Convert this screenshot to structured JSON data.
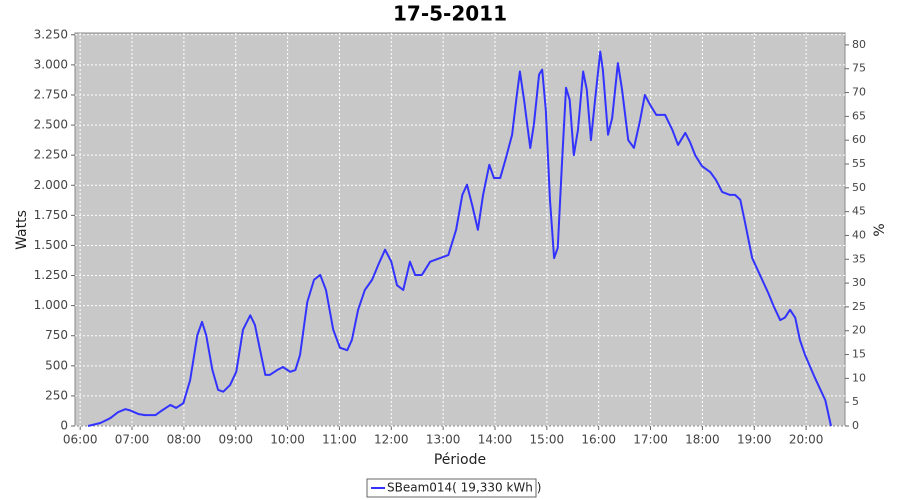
{
  "chart_data": {
    "type": "line",
    "title": "17-5-2011",
    "x_label": "Période",
    "y_label": "Watts",
    "y2_label": "%",
    "xlim": [
      5.9,
      20.75
    ],
    "xticks": [
      {
        "value": 6,
        "label": "06:00"
      },
      {
        "value": 7,
        "label": "07:00"
      },
      {
        "value": 8,
        "label": "08:00"
      },
      {
        "value": 9,
        "label": "09:00"
      },
      {
        "value": 10,
        "label": "10:00"
      },
      {
        "value": 11,
        "label": "11:00"
      },
      {
        "value": 12,
        "label": "12:00"
      },
      {
        "value": 13,
        "label": "13:00"
      },
      {
        "value": 14,
        "label": "14:00"
      },
      {
        "value": 15,
        "label": "15:00"
      },
      {
        "value": 16,
        "label": "16:00"
      },
      {
        "value": 17,
        "label": "17:00"
      },
      {
        "value": 18,
        "label": "18:00"
      },
      {
        "value": 19,
        "label": "19:00"
      },
      {
        "value": 20,
        "label": "20:00"
      }
    ],
    "ylim": [
      0,
      3265
    ],
    "yticks": [
      0,
      250,
      500,
      750,
      {
        "value": 1000,
        "label": "1.000"
      },
      {
        "value": 1250,
        "label": "1.250"
      },
      {
        "value": 1500,
        "label": "1.500"
      },
      {
        "value": 1750,
        "label": "1.750"
      },
      {
        "value": 2000,
        "label": "2.000"
      },
      {
        "value": 2250,
        "label": "2.250"
      },
      {
        "value": 2500,
        "label": "2.500"
      },
      {
        "value": 2750,
        "label": "2.750"
      },
      {
        "value": 3000,
        "label": "3.000"
      },
      {
        "value": 3250,
        "label": "3.250"
      }
    ],
    "y2lim": [
      0,
      82.5
    ],
    "y2ticks": [
      0,
      5,
      10,
      15,
      20,
      25,
      30,
      35,
      40,
      45,
      50,
      55,
      60,
      65,
      70,
      75,
      80
    ],
    "grid": true,
    "legend": "bottom",
    "x": [
      6.15,
      6.39,
      6.58,
      6.73,
      6.87,
      6.96,
      7.12,
      7.25,
      7.45,
      7.58,
      7.74,
      7.85,
      7.99,
      8.12,
      8.26,
      8.35,
      8.43,
      8.55,
      8.66,
      8.76,
      8.89,
      9.01,
      9.14,
      9.28,
      9.37,
      9.47,
      9.57,
      9.66,
      9.8,
      9.91,
      10.05,
      10.15,
      10.24,
      10.38,
      10.51,
      10.63,
      10.74,
      10.88,
      11.01,
      11.15,
      11.24,
      11.36,
      11.49,
      11.63,
      11.75,
      11.88,
      12.0,
      12.11,
      12.23,
      12.36,
      12.46,
      12.59,
      12.75,
      12.94,
      13.1,
      13.25,
      13.37,
      13.46,
      13.56,
      13.67,
      13.77,
      13.89,
      13.98,
      14.1,
      14.2,
      14.33,
      14.41,
      14.48,
      14.56,
      14.68,
      14.75,
      14.85,
      14.91,
      14.98,
      15.06,
      15.14,
      15.21,
      15.29,
      15.37,
      15.44,
      15.52,
      15.6,
      15.7,
      15.77,
      15.85,
      15.93,
      16.03,
      16.08,
      16.18,
      16.26,
      16.37,
      16.45,
      16.57,
      16.68,
      16.8,
      16.89,
      16.99,
      17.11,
      17.28,
      17.42,
      17.53,
      17.67,
      17.76,
      17.86,
      17.99,
      18.15,
      18.26,
      18.38,
      18.53,
      18.63,
      18.73,
      18.82,
      18.96,
      19.11,
      19.27,
      19.38,
      19.5,
      19.59,
      19.69,
      19.79,
      19.88,
      19.98,
      20.17,
      20.37,
      20.48
    ],
    "series": [
      {
        "name": "SBeam014( 19,330 kWh )",
        "color": "#3333ff",
        "values": [
          0,
          25,
          65,
          115,
          140,
          130,
          100,
          90,
          90,
          130,
          175,
          150,
          190,
          380,
          755,
          865,
          755,
          465,
          300,
          285,
          340,
          450,
          800,
          920,
          840,
          630,
          425,
          425,
          465,
          490,
          450,
          465,
          590,
          1030,
          1215,
          1255,
          1130,
          800,
          650,
          630,
          715,
          965,
          1130,
          1215,
          1340,
          1465,
          1365,
          1170,
          1130,
          1365,
          1255,
          1255,
          1365,
          1395,
          1420,
          1630,
          1920,
          2005,
          1835,
          1630,
          1920,
          2170,
          2060,
          2060,
          2210,
          2420,
          2710,
          2945,
          2710,
          2310,
          2505,
          2920,
          2960,
          2625,
          1880,
          1395,
          1480,
          2170,
          2810,
          2710,
          2250,
          2460,
          2945,
          2795,
          2375,
          2710,
          3110,
          2960,
          2420,
          2560,
          3015,
          2795,
          2375,
          2310,
          2545,
          2750,
          2670,
          2585,
          2585,
          2460,
          2335,
          2435,
          2360,
          2250,
          2160,
          2110,
          2045,
          1945,
          1920,
          1920,
          1880,
          1695,
          1395,
          1255,
          1105,
          990,
          880,
          900,
          965,
          900,
          715,
          590,
          400,
          215,
          0
        ]
      }
    ]
  }
}
